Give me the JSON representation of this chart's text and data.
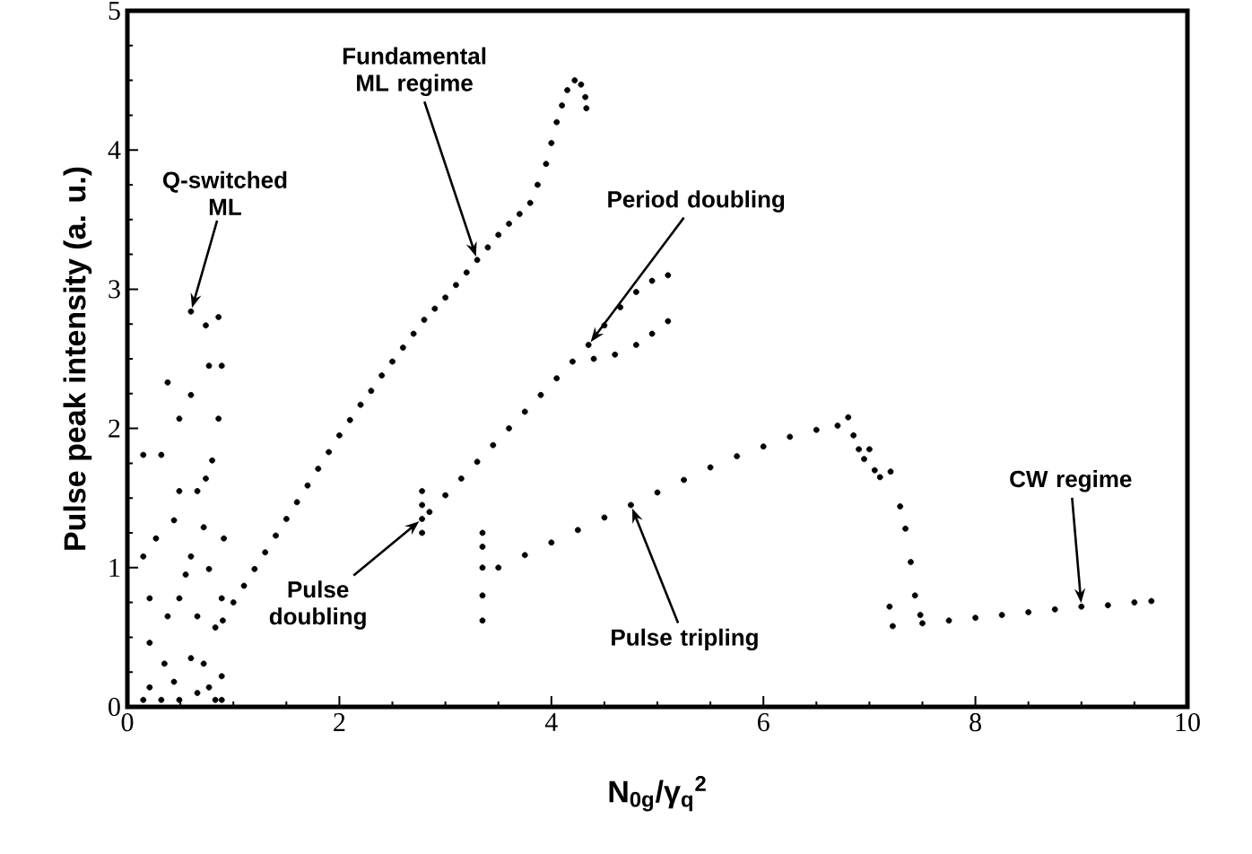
{
  "chart_data": {
    "type": "scatter",
    "xlabel": "**N$_{0g}$/γ$_{q}$$^{2}$**",
    "ylabel": "**Pulse peak intensity (a. u.)**",
    "xlim": [
      0,
      10
    ],
    "ylim": [
      0,
      5
    ],
    "xticks": [
      0,
      2,
      4,
      6,
      8,
      10
    ],
    "yticks": [
      0,
      1,
      2,
      3,
      4,
      5
    ],
    "marker": "circle",
    "series": [
      {
        "color": "#000000",
        "x": [
          0.6,
          0.74,
          0.38,
          0.15,
          0.32,
          0.6,
          0.77,
          0.89,
          0.49,
          0.66,
          0.74,
          0.27,
          0.44,
          0.6,
          0.77,
          0.15,
          0.49,
          0.38,
          0.21,
          0.21,
          0.66,
          0.83,
          0.6,
          0.35,
          0.44,
          0.21,
          0.15,
          0.32,
          0.66,
          0.77,
          0.89,
          0.89,
          0.91,
          0.86,
          0.49,
          0.8,
          0.72,
          0.55,
          0.83,
          0.49,
          0.72,
          0.89,
          0.86,
          0.9,
          1.0,
          1.1,
          1.2,
          1.3,
          1.4,
          1.5,
          1.6,
          1.7,
          1.8,
          1.9,
          2.0,
          2.1,
          2.2,
          2.3,
          2.4,
          2.5,
          2.6,
          2.7,
          2.8,
          2.9,
          3.0,
          3.1,
          3.2,
          3.3,
          3.4,
          3.5,
          3.6,
          3.7,
          3.8,
          3.87,
          3.95,
          4.0,
          4.05,
          4.1,
          4.15,
          4.22,
          4.28,
          4.32,
          4.33,
          2.78,
          2.78,
          2.78,
          2.78,
          2.85,
          3.0,
          3.15,
          3.3,
          3.45,
          3.6,
          3.75,
          3.9,
          4.05,
          4.2,
          4.35,
          4.5,
          4.65,
          4.8,
          4.95,
          5.1,
          4.4,
          4.6,
          4.8,
          4.95,
          5.1,
          3.35,
          3.35,
          3.35,
          3.35,
          3.35,
          3.5,
          3.75,
          4.0,
          4.25,
          4.5,
          4.75,
          5.0,
          5.25,
          5.5,
          5.75,
          6.0,
          6.25,
          6.5,
          6.7,
          6.8,
          6.85,
          6.9,
          6.95,
          7.0,
          7.05,
          7.1,
          7.2,
          7.29,
          7.34,
          7.39,
          7.43,
          7.48,
          7.19,
          7.22,
          7.5,
          7.75,
          8.0,
          8.25,
          8.5,
          8.75,
          9.0,
          9.25,
          9.5,
          9.66
        ],
        "values": [
          2.84,
          2.74,
          2.33,
          1.81,
          1.81,
          2.24,
          2.45,
          2.45,
          1.55,
          1.55,
          1.64,
          1.21,
          1.34,
          1.08,
          0.99,
          1.08,
          0.78,
          0.65,
          0.78,
          0.46,
          0.65,
          0.57,
          0.35,
          0.31,
          0.18,
          0.14,
          0.05,
          0.05,
          0.1,
          0.14,
          0.22,
          0.78,
          1.21,
          2.07,
          2.07,
          1.77,
          1.29,
          0.95,
          0.05,
          0.05,
          0.31,
          0.05,
          2.8,
          0.62,
          0.75,
          0.87,
          0.99,
          1.11,
          1.23,
          1.35,
          1.47,
          1.59,
          1.71,
          1.83,
          1.95,
          2.06,
          2.17,
          2.27,
          2.38,
          2.48,
          2.58,
          2.68,
          2.78,
          2.86,
          2.94,
          3.03,
          3.12,
          3.21,
          3.3,
          3.39,
          3.47,
          3.54,
          3.62,
          3.75,
          3.9,
          4.05,
          4.2,
          4.32,
          4.43,
          4.5,
          4.47,
          4.38,
          4.3,
          1.25,
          1.35,
          1.45,
          1.55,
          1.4,
          1.52,
          1.64,
          1.76,
          1.88,
          2.0,
          2.12,
          2.24,
          2.36,
          2.48,
          2.6,
          2.74,
          2.87,
          2.98,
          3.06,
          3.1,
          2.5,
          2.53,
          2.6,
          2.68,
          2.77,
          0.62,
          0.8,
          1.0,
          1.15,
          1.25,
          1.0,
          1.09,
          1.18,
          1.27,
          1.36,
          1.45,
          1.54,
          1.63,
          1.72,
          1.8,
          1.87,
          1.94,
          1.99,
          2.02,
          2.08,
          1.95,
          1.85,
          1.78,
          1.85,
          1.7,
          1.65,
          1.69,
          1.44,
          1.28,
          1.04,
          0.8,
          0.66,
          0.72,
          0.58,
          0.6,
          0.62,
          0.64,
          0.66,
          0.68,
          0.7,
          0.72,
          0.73,
          0.75,
          0.76
        ]
      }
    ],
    "annotations": [
      {
        "text": "Q-switched ML",
        "x": 0.6,
        "y": 2.84
      },
      {
        "text": "Fundamental ML regime",
        "x": 3.3,
        "y": 3.21
      },
      {
        "text": "Period doubling",
        "x": 4.35,
        "y": 2.6
      },
      {
        "text": "Pulse doubling",
        "x": 2.78,
        "y": 1.35
      },
      {
        "text": "Pulse tripling",
        "x": 4.75,
        "y": 1.45
      },
      {
        "text": "CW regime",
        "x": 9.0,
        "y": 0.72
      }
    ]
  }
}
